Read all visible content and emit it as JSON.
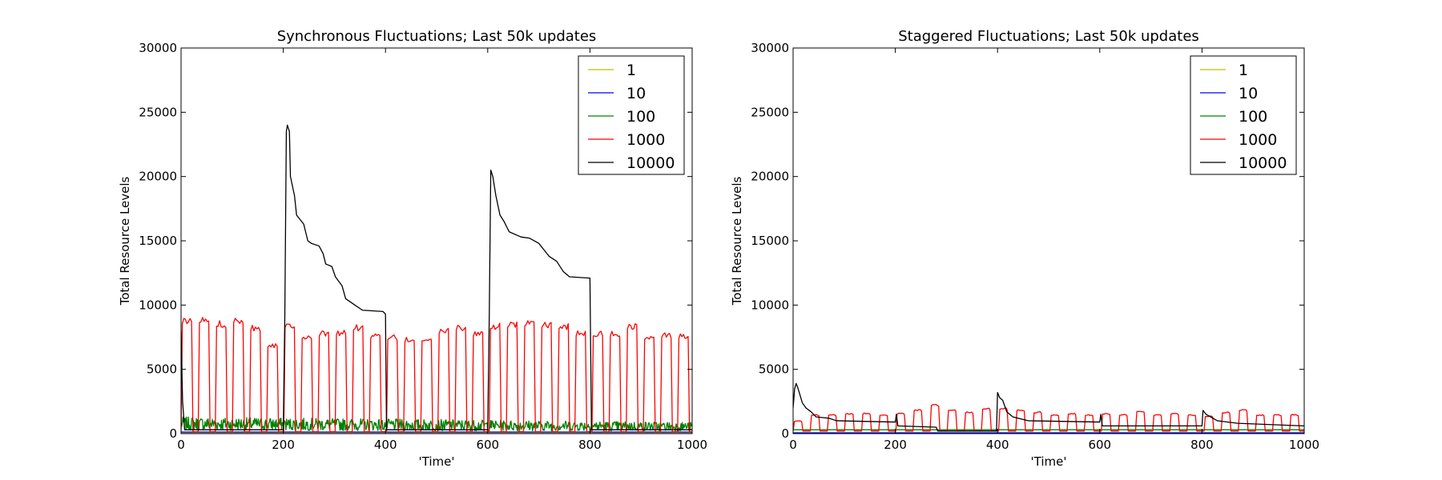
{
  "chart_data": [
    {
      "type": "line",
      "title": "Synchronous Fluctuations; Last 50k updates",
      "xlabel": "'Time'",
      "ylabel": "Total Resource Levels",
      "xlim": [
        0,
        1000
      ],
      "ylim": [
        0,
        30000
      ],
      "xticks": [
        "0",
        "200",
        "400",
        "600",
        "800",
        "1000"
      ],
      "yticks": [
        "0",
        "5000",
        "10000",
        "15000",
        "20000",
        "25000",
        "30000"
      ],
      "grid": false,
      "legend_position": "top-right",
      "series": [
        {
          "name": "1",
          "color": "#bfbf00",
          "pattern": "flat",
          "level": 30
        },
        {
          "name": "10",
          "color": "#0000ff",
          "pattern": "flat",
          "level": 120
        },
        {
          "name": "100",
          "color": "#008000",
          "pattern": "noise",
          "low": 250,
          "high": 1300,
          "trend_end_low": 200,
          "trend_end_high": 900
        },
        {
          "name": "1000",
          "color": "#ff0000",
          "pattern": "pulse",
          "period": 33.5,
          "duty": 0.62,
          "low": 150,
          "high": [
            9000,
            9100,
            8800,
            9100,
            8500,
            7100,
            8700,
            7800,
            8000,
            8100,
            8500,
            7800,
            7700,
            7500,
            7600,
            8200,
            8500,
            8000,
            8600,
            8700,
            8800,
            8700,
            8600,
            8000,
            8000,
            8000,
            8600,
            7700,
            7900,
            7800
          ]
        },
        {
          "name": "10000",
          "color": "#000000",
          "pattern": "points",
          "points": [
            [
              0,
              8000
            ],
            [
              3,
              2500
            ],
            [
              7,
              300
            ],
            [
              200,
              300
            ],
            [
              203,
              9000
            ],
            [
              206,
              23500
            ],
            [
              208,
              24000
            ],
            [
              212,
              23500
            ],
            [
              214,
              20000
            ],
            [
              222,
              18500
            ],
            [
              226,
              17000
            ],
            [
              240,
              16300
            ],
            [
              248,
              15000
            ],
            [
              255,
              14800
            ],
            [
              270,
              14600
            ],
            [
              278,
              14000
            ],
            [
              283,
              13200
            ],
            [
              295,
              13000
            ],
            [
              302,
              12200
            ],
            [
              315,
              11500
            ],
            [
              322,
              10500
            ],
            [
              340,
              10000
            ],
            [
              355,
              9600
            ],
            [
              395,
              9500
            ],
            [
              400,
              9300
            ],
            [
              402,
              300
            ],
            [
              600,
              300
            ],
            [
              603,
              9000
            ],
            [
              606,
              20500
            ],
            [
              610,
              20000
            ],
            [
              616,
              18500
            ],
            [
              624,
              17000
            ],
            [
              632,
              16500
            ],
            [
              642,
              15700
            ],
            [
              665,
              15300
            ],
            [
              682,
              15200
            ],
            [
              700,
              14800
            ],
            [
              710,
              14300
            ],
            [
              720,
              13800
            ],
            [
              735,
              13400
            ],
            [
              748,
              12600
            ],
            [
              760,
              12200
            ],
            [
              800,
              12100
            ],
            [
              803,
              300
            ],
            [
              1000,
              300
            ]
          ]
        }
      ]
    },
    {
      "type": "line",
      "title": "Staggered Fluctuations; Last 50k updates",
      "xlabel": "'Time'",
      "ylabel": "Total Resource Levels",
      "xlim": [
        0,
        1000
      ],
      "ylim": [
        0,
        30000
      ],
      "xticks": [
        "0",
        "200",
        "400",
        "600",
        "800",
        "1000"
      ],
      "yticks": [
        "0",
        "5000",
        "10000",
        "15000",
        "20000",
        "25000",
        "30000"
      ],
      "grid": false,
      "legend_position": "top-right",
      "series": [
        {
          "name": "1",
          "color": "#bfbf00",
          "pattern": "flat",
          "level": 20
        },
        {
          "name": "10",
          "color": "#0000ff",
          "pattern": "flat",
          "level": 60
        },
        {
          "name": "100",
          "color": "#008000",
          "pattern": "flat",
          "level": 300
        },
        {
          "name": "1000",
          "color": "#ff0000",
          "pattern": "pulse",
          "period": 33.5,
          "duty": 0.5,
          "low": 200,
          "high": [
            1000,
            1500,
            1500,
            1600,
            1600,
            1500,
            1600,
            1900,
            2300,
            1900,
            1700,
            2000,
            2000,
            1900,
            1700,
            1500,
            1600,
            1500,
            1600,
            1500,
            1800,
            1500,
            1600,
            1500,
            1400,
            1700,
            1900,
            1500,
            1500,
            1500
          ]
        },
        {
          "name": "10000",
          "color": "#000000",
          "pattern": "points",
          "points": [
            [
              0,
              2000
            ],
            [
              3,
              3500
            ],
            [
              6,
              3900
            ],
            [
              9,
              3600
            ],
            [
              12,
              3200
            ],
            [
              18,
              2400
            ],
            [
              25,
              2000
            ],
            [
              35,
              1700
            ],
            [
              45,
              1300
            ],
            [
              70,
              1200
            ],
            [
              85,
              1000
            ],
            [
              200,
              900
            ],
            [
              202,
              1500
            ],
            [
              205,
              600
            ],
            [
              280,
              500
            ],
            [
              283,
              200
            ],
            [
              398,
              200
            ],
            [
              400,
              3200
            ],
            [
              404,
              2800
            ],
            [
              410,
              2600
            ],
            [
              418,
              1700
            ],
            [
              430,
              1300
            ],
            [
              460,
              1000
            ],
            [
              600,
              900
            ],
            [
              602,
              1500
            ],
            [
              605,
              600
            ],
            [
              800,
              600
            ],
            [
              802,
              1800
            ],
            [
              808,
              1500
            ],
            [
              830,
              1000
            ],
            [
              870,
              800
            ],
            [
              1000,
              600
            ]
          ]
        }
      ]
    }
  ]
}
